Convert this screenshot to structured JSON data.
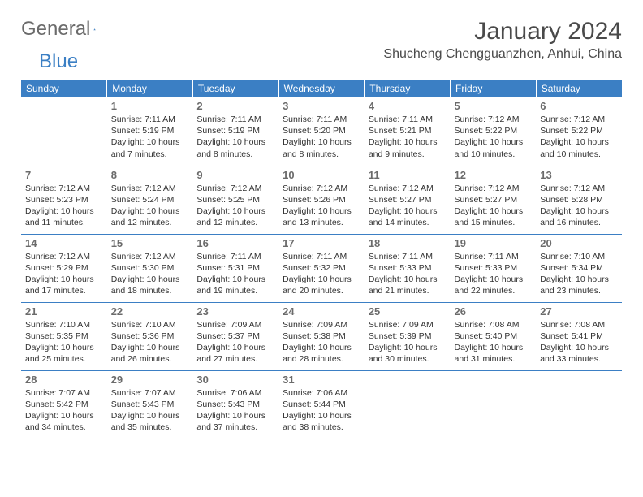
{
  "brand": {
    "general": "General",
    "blue": "Blue"
  },
  "title": "January 2024",
  "location": "Shucheng Chengguanzhen, Anhui, China",
  "colors": {
    "header_bg": "#3b7fc4",
    "header_text": "#ffffff",
    "daynum": "#6b6b6b",
    "body_text": "#333333",
    "row_border": "#3b7fc4"
  },
  "weekdays": [
    "Sunday",
    "Monday",
    "Tuesday",
    "Wednesday",
    "Thursday",
    "Friday",
    "Saturday"
  ],
  "weeks": [
    [
      {
        "n": "",
        "sr": "",
        "ss": "",
        "dl": ""
      },
      {
        "n": "1",
        "sr": "Sunrise: 7:11 AM",
        "ss": "Sunset: 5:19 PM",
        "dl": "Daylight: 10 hours and 7 minutes."
      },
      {
        "n": "2",
        "sr": "Sunrise: 7:11 AM",
        "ss": "Sunset: 5:19 PM",
        "dl": "Daylight: 10 hours and 8 minutes."
      },
      {
        "n": "3",
        "sr": "Sunrise: 7:11 AM",
        "ss": "Sunset: 5:20 PM",
        "dl": "Daylight: 10 hours and 8 minutes."
      },
      {
        "n": "4",
        "sr": "Sunrise: 7:11 AM",
        "ss": "Sunset: 5:21 PM",
        "dl": "Daylight: 10 hours and 9 minutes."
      },
      {
        "n": "5",
        "sr": "Sunrise: 7:12 AM",
        "ss": "Sunset: 5:22 PM",
        "dl": "Daylight: 10 hours and 10 minutes."
      },
      {
        "n": "6",
        "sr": "Sunrise: 7:12 AM",
        "ss": "Sunset: 5:22 PM",
        "dl": "Daylight: 10 hours and 10 minutes."
      }
    ],
    [
      {
        "n": "7",
        "sr": "Sunrise: 7:12 AM",
        "ss": "Sunset: 5:23 PM",
        "dl": "Daylight: 10 hours and 11 minutes."
      },
      {
        "n": "8",
        "sr": "Sunrise: 7:12 AM",
        "ss": "Sunset: 5:24 PM",
        "dl": "Daylight: 10 hours and 12 minutes."
      },
      {
        "n": "9",
        "sr": "Sunrise: 7:12 AM",
        "ss": "Sunset: 5:25 PM",
        "dl": "Daylight: 10 hours and 12 minutes."
      },
      {
        "n": "10",
        "sr": "Sunrise: 7:12 AM",
        "ss": "Sunset: 5:26 PM",
        "dl": "Daylight: 10 hours and 13 minutes."
      },
      {
        "n": "11",
        "sr": "Sunrise: 7:12 AM",
        "ss": "Sunset: 5:27 PM",
        "dl": "Daylight: 10 hours and 14 minutes."
      },
      {
        "n": "12",
        "sr": "Sunrise: 7:12 AM",
        "ss": "Sunset: 5:27 PM",
        "dl": "Daylight: 10 hours and 15 minutes."
      },
      {
        "n": "13",
        "sr": "Sunrise: 7:12 AM",
        "ss": "Sunset: 5:28 PM",
        "dl": "Daylight: 10 hours and 16 minutes."
      }
    ],
    [
      {
        "n": "14",
        "sr": "Sunrise: 7:12 AM",
        "ss": "Sunset: 5:29 PM",
        "dl": "Daylight: 10 hours and 17 minutes."
      },
      {
        "n": "15",
        "sr": "Sunrise: 7:12 AM",
        "ss": "Sunset: 5:30 PM",
        "dl": "Daylight: 10 hours and 18 minutes."
      },
      {
        "n": "16",
        "sr": "Sunrise: 7:11 AM",
        "ss": "Sunset: 5:31 PM",
        "dl": "Daylight: 10 hours and 19 minutes."
      },
      {
        "n": "17",
        "sr": "Sunrise: 7:11 AM",
        "ss": "Sunset: 5:32 PM",
        "dl": "Daylight: 10 hours and 20 minutes."
      },
      {
        "n": "18",
        "sr": "Sunrise: 7:11 AM",
        "ss": "Sunset: 5:33 PM",
        "dl": "Daylight: 10 hours and 21 minutes."
      },
      {
        "n": "19",
        "sr": "Sunrise: 7:11 AM",
        "ss": "Sunset: 5:33 PM",
        "dl": "Daylight: 10 hours and 22 minutes."
      },
      {
        "n": "20",
        "sr": "Sunrise: 7:10 AM",
        "ss": "Sunset: 5:34 PM",
        "dl": "Daylight: 10 hours and 23 minutes."
      }
    ],
    [
      {
        "n": "21",
        "sr": "Sunrise: 7:10 AM",
        "ss": "Sunset: 5:35 PM",
        "dl": "Daylight: 10 hours and 25 minutes."
      },
      {
        "n": "22",
        "sr": "Sunrise: 7:10 AM",
        "ss": "Sunset: 5:36 PM",
        "dl": "Daylight: 10 hours and 26 minutes."
      },
      {
        "n": "23",
        "sr": "Sunrise: 7:09 AM",
        "ss": "Sunset: 5:37 PM",
        "dl": "Daylight: 10 hours and 27 minutes."
      },
      {
        "n": "24",
        "sr": "Sunrise: 7:09 AM",
        "ss": "Sunset: 5:38 PM",
        "dl": "Daylight: 10 hours and 28 minutes."
      },
      {
        "n": "25",
        "sr": "Sunrise: 7:09 AM",
        "ss": "Sunset: 5:39 PM",
        "dl": "Daylight: 10 hours and 30 minutes."
      },
      {
        "n": "26",
        "sr": "Sunrise: 7:08 AM",
        "ss": "Sunset: 5:40 PM",
        "dl": "Daylight: 10 hours and 31 minutes."
      },
      {
        "n": "27",
        "sr": "Sunrise: 7:08 AM",
        "ss": "Sunset: 5:41 PM",
        "dl": "Daylight: 10 hours and 33 minutes."
      }
    ],
    [
      {
        "n": "28",
        "sr": "Sunrise: 7:07 AM",
        "ss": "Sunset: 5:42 PM",
        "dl": "Daylight: 10 hours and 34 minutes."
      },
      {
        "n": "29",
        "sr": "Sunrise: 7:07 AM",
        "ss": "Sunset: 5:43 PM",
        "dl": "Daylight: 10 hours and 35 minutes."
      },
      {
        "n": "30",
        "sr": "Sunrise: 7:06 AM",
        "ss": "Sunset: 5:43 PM",
        "dl": "Daylight: 10 hours and 37 minutes."
      },
      {
        "n": "31",
        "sr": "Sunrise: 7:06 AM",
        "ss": "Sunset: 5:44 PM",
        "dl": "Daylight: 10 hours and 38 minutes."
      },
      {
        "n": "",
        "sr": "",
        "ss": "",
        "dl": ""
      },
      {
        "n": "",
        "sr": "",
        "ss": "",
        "dl": ""
      },
      {
        "n": "",
        "sr": "",
        "ss": "",
        "dl": ""
      }
    ]
  ]
}
